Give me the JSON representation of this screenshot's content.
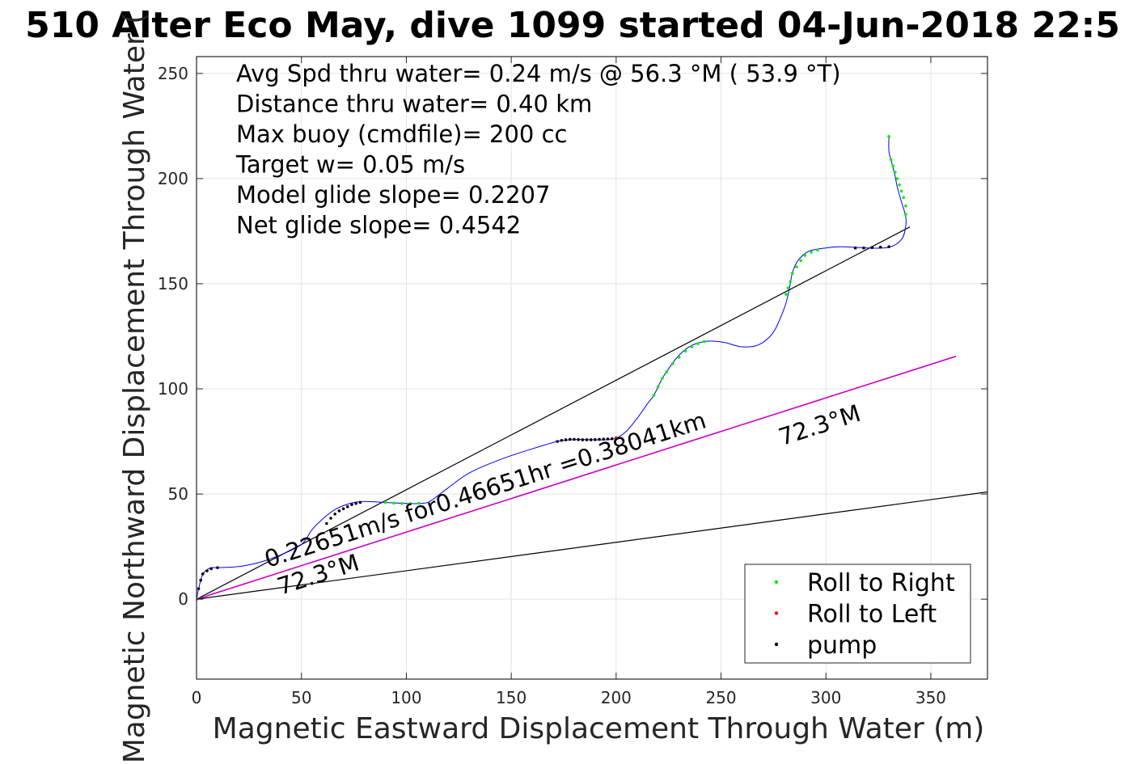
{
  "chart_data": {
    "type": "line",
    "title": "510 Alter Eco May, dive 1099 started 04-Jun-2018 22:5",
    "xlabel": "Magnetic Eastward Displacement Through Water (m)",
    "ylabel": "Magnetic Northward Displacement Through Water (",
    "xlim": [
      0,
      377
    ],
    "ylim": [
      -38,
      258
    ],
    "xticks": [
      "0",
      "50",
      "100",
      "150",
      "200",
      "250",
      "300",
      "350"
    ],
    "yticks": [
      "0",
      "50",
      "100",
      "150",
      "200",
      "250"
    ],
    "grid": true,
    "legend_position": "bottom-right",
    "summary_lines": [
      "Avg Spd thru water=  0.24 m/s @  56.3 °M ( 53.9 °T)",
      "Distance thru water=  0.40 km",
      "Max buoy (cmdfile)= 200 cc",
      "Target w= 0.05 m/s",
      "Model glide slope= 0.2207",
      "Net glide slope= 0.4542"
    ],
    "annotations": [
      {
        "text": "0.22651m/s for0.46651hr =0.38041km",
        "anchor": [
          34,
          15
        ],
        "angle_data_slope": 0.319
      },
      {
        "text": "72.3°M",
        "anchor": [
          40,
          2
        ],
        "angle_data_slope": 0.319
      },
      {
        "text": "72.3°M",
        "anchor": [
          279,
          73
        ],
        "angle_data_slope": 0.319
      }
    ],
    "lines": [
      {
        "color": "#000000",
        "x": [
          0,
          340
        ],
        "y": [
          0,
          177
        ]
      },
      {
        "color": "#cc00cc",
        "x": [
          0,
          362
        ],
        "y": [
          0,
          115.5
        ]
      },
      {
        "color": "#000000",
        "x": [
          0,
          377
        ],
        "y": [
          0,
          51
        ]
      }
    ],
    "series": [
      {
        "color": "#0000ff",
        "x": [
          0,
          1,
          2,
          3,
          5,
          7,
          10,
          20,
          30,
          40,
          50,
          55,
          60,
          65,
          70,
          75,
          80,
          90,
          100,
          108,
          112,
          120,
          130,
          145,
          160,
          172,
          180,
          190,
          195,
          200,
          205,
          210,
          215,
          218,
          222,
          226,
          230,
          234,
          238,
          242,
          246,
          252,
          260,
          268,
          275,
          280,
          282,
          283,
          284,
          286,
          289,
          292,
          296,
          300,
          305,
          310,
          320,
          330,
          336,
          338,
          338,
          336,
          334,
          333,
          332,
          331,
          330,
          330
        ],
        "y": [
          0,
          5,
          9,
          12,
          14,
          15,
          15,
          15.5,
          17.5,
          21,
          26,
          33,
          38,
          42,
          44.5,
          46,
          46.5,
          46,
          45.5,
          45.6,
          47,
          53,
          60,
          66.5,
          71.5,
          75,
          75.9,
          75.8,
          75.8,
          76.5,
          80,
          86,
          93,
          97,
          105,
          111,
          116,
          119.5,
          121.5,
          122.5,
          122.7,
          122,
          120,
          121,
          127,
          138,
          145,
          150,
          155,
          160,
          163.5,
          165.5,
          166.5,
          167,
          167.5,
          167.5,
          167,
          167.3,
          171,
          177,
          182,
          189,
          196,
          201,
          205,
          209,
          213,
          220
        ]
      }
    ],
    "markers": [
      {
        "name": "Roll to Right",
        "color": "#00ee00",
        "x": [
          90,
          94,
          98,
          102,
          106,
          218,
          220,
          222,
          224,
          227,
          230,
          233,
          236,
          239,
          242,
          281,
          282,
          283,
          284,
          286,
          288,
          290,
          293,
          296,
          330,
          331,
          332,
          333,
          334,
          335,
          336,
          337,
          338,
          338
        ],
        "y": [
          46,
          45.7,
          45.5,
          45.5,
          45.6,
          97,
          101,
          105,
          108,
          112,
          115,
          118,
          120,
          121.5,
          122.5,
          145,
          148,
          151,
          155,
          158,
          161,
          163.5,
          165,
          166,
          220,
          209,
          206,
          203,
          200,
          197,
          194,
          191,
          187,
          183
        ]
      },
      {
        "name": "Roll to Left",
        "color": "#ff0000",
        "x": [
          0,
          200,
          314
        ],
        "y": [
          0,
          76.8,
          167
        ]
      },
      {
        "name": "pump",
        "color": "#000000",
        "x": [
          1,
          2,
          3,
          5,
          7,
          10,
          62,
          64,
          66,
          68,
          70,
          72,
          74,
          76,
          78,
          172,
          174,
          176,
          178,
          180,
          182,
          184,
          186,
          188,
          190,
          192,
          194,
          196,
          198,
          314,
          318,
          322,
          326,
          330
        ],
        "y": [
          5,
          9,
          12,
          13.5,
          14.5,
          15,
          36,
          38.5,
          40.5,
          42,
          43,
          44,
          45,
          45.5,
          46,
          75,
          75.5,
          75.8,
          76,
          76,
          75.9,
          75.8,
          75.8,
          75.8,
          75.9,
          76,
          76.1,
          76.2,
          76.3,
          167,
          167,
          167.2,
          167.4,
          167.6
        ]
      }
    ],
    "legend": [
      {
        "label": "Roll to Right",
        "color": "#00ee00"
      },
      {
        "label": "Roll to Left",
        "color": "#ff0000"
      },
      {
        "label": "pump",
        "color": "#000000"
      }
    ]
  }
}
